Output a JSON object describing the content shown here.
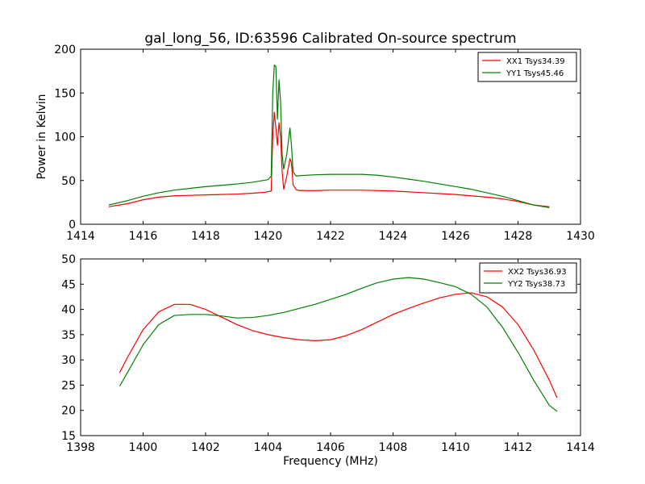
{
  "chart_data": [
    {
      "type": "line",
      "title": "gal_long_56, ID:63596 Calibrated On-source spectrum",
      "xlabel": "",
      "ylabel": "Power in Kelvin",
      "xlim": [
        1414,
        1430
      ],
      "ylim": [
        0,
        200
      ],
      "xticks": [
        1414,
        1416,
        1418,
        1420,
        1422,
        1424,
        1426,
        1428,
        1430
      ],
      "yticks": [
        0,
        50,
        100,
        150,
        200
      ],
      "grid": false,
      "legend_position": "top-right",
      "series": [
        {
          "name": "XX1 Tsys34.39",
          "color": "#ff0000",
          "points": [
            [
              1414.9,
              20
            ],
            [
              1415.5,
              23.5
            ],
            [
              1416,
              28
            ],
            [
              1416.5,
              31
            ],
            [
              1417,
              32.5
            ],
            [
              1417.5,
              33
            ],
            [
              1418,
              33.5
            ],
            [
              1418.5,
              34
            ],
            [
              1419,
              34.5
            ],
            [
              1419.5,
              35.5
            ],
            [
              1419.9,
              36.5
            ],
            [
              1420.1,
              38
            ],
            [
              1420.15,
              100
            ],
            [
              1420.2,
              128
            ],
            [
              1420.25,
              110
            ],
            [
              1420.3,
              90
            ],
            [
              1420.35,
              116
            ],
            [
              1420.4,
              100
            ],
            [
              1420.45,
              60
            ],
            [
              1420.5,
              40
            ],
            [
              1420.6,
              55
            ],
            [
              1420.7,
              75
            ],
            [
              1420.75,
              70
            ],
            [
              1420.8,
              45
            ],
            [
              1420.9,
              39.5
            ],
            [
              1421,
              38.5
            ],
            [
              1421.5,
              38.5
            ],
            [
              1422,
              39
            ],
            [
              1422.5,
              39
            ],
            [
              1423,
              39
            ],
            [
              1423.5,
              38.5
            ],
            [
              1424,
              38
            ],
            [
              1424.5,
              37
            ],
            [
              1425,
              36
            ],
            [
              1425.5,
              35
            ],
            [
              1426,
              34
            ],
            [
              1426.5,
              32.5
            ],
            [
              1427,
              31
            ],
            [
              1427.5,
              29
            ],
            [
              1428,
              26
            ],
            [
              1428.5,
              22
            ],
            [
              1429,
              20
            ]
          ]
        },
        {
          "name": "YY1 Tsys45.46",
          "color": "#008000",
          "points": [
            [
              1414.9,
              22
            ],
            [
              1415.5,
              27
            ],
            [
              1416,
              32
            ],
            [
              1416.5,
              36
            ],
            [
              1417,
              39
            ],
            [
              1417.5,
              41
            ],
            [
              1418,
              43
            ],
            [
              1418.5,
              44.5
            ],
            [
              1419,
              46
            ],
            [
              1419.5,
              48
            ],
            [
              1420,
              51
            ],
            [
              1420.1,
              55
            ],
            [
              1420.15,
              150
            ],
            [
              1420.2,
              182
            ],
            [
              1420.25,
              180
            ],
            [
              1420.3,
              120
            ],
            [
              1420.35,
              165
            ],
            [
              1420.4,
              140
            ],
            [
              1420.45,
              80
            ],
            [
              1420.5,
              63
            ],
            [
              1420.6,
              80
            ],
            [
              1420.7,
              110
            ],
            [
              1420.75,
              90
            ],
            [
              1420.8,
              60
            ],
            [
              1420.9,
              55
            ],
            [
              1421,
              55.5
            ],
            [
              1421.5,
              56.5
            ],
            [
              1422,
              57
            ],
            [
              1422.5,
              57
            ],
            [
              1423,
              57
            ],
            [
              1423.5,
              56
            ],
            [
              1424,
              54
            ],
            [
              1424.5,
              51.5
            ],
            [
              1425,
              49
            ],
            [
              1425.5,
              46
            ],
            [
              1426,
              43
            ],
            [
              1426.5,
              40
            ],
            [
              1427,
              36
            ],
            [
              1427.5,
              32
            ],
            [
              1428,
              27
            ],
            [
              1428.5,
              22
            ],
            [
              1429,
              19
            ]
          ]
        }
      ]
    },
    {
      "type": "line",
      "title": "",
      "xlabel": "Frequency (MHz)",
      "ylabel": "",
      "xlim": [
        1398,
        1414
      ],
      "ylim": [
        15,
        50
      ],
      "xticks": [
        1398,
        1400,
        1402,
        1404,
        1406,
        1408,
        1410,
        1412,
        1414
      ],
      "yticks": [
        15,
        20,
        25,
        30,
        35,
        40,
        45,
        50
      ],
      "grid": false,
      "legend_position": "top-right",
      "series": [
        {
          "name": "XX2 Tsys36.93",
          "color": "#ff0000",
          "points": [
            [
              1399.25,
              27.5
            ],
            [
              1399.5,
              30.5
            ],
            [
              1400,
              36
            ],
            [
              1400.5,
              39.5
            ],
            [
              1401,
              41
            ],
            [
              1401.5,
              41
            ],
            [
              1402,
              40
            ],
            [
              1402.5,
              38.5
            ],
            [
              1403,
              37
            ],
            [
              1403.5,
              35.8
            ],
            [
              1404,
              35
            ],
            [
              1404.5,
              34.4
            ],
            [
              1405,
              34
            ],
            [
              1405.5,
              33.8
            ],
            [
              1406,
              34
            ],
            [
              1406.5,
              34.8
            ],
            [
              1407,
              36
            ],
            [
              1407.5,
              37.5
            ],
            [
              1408,
              39
            ],
            [
              1408.5,
              40.2
            ],
            [
              1409,
              41.3
            ],
            [
              1409.5,
              42.3
            ],
            [
              1410,
              43
            ],
            [
              1410.5,
              43.3
            ],
            [
              1411,
              42.5
            ],
            [
              1411.5,
              40.5
            ],
            [
              1412,
              37
            ],
            [
              1412.5,
              32
            ],
            [
              1413,
              26
            ],
            [
              1413.25,
              22.5
            ]
          ]
        },
        {
          "name": "YY2 Tsys38.73",
          "color": "#008000",
          "points": [
            [
              1399.25,
              24.8
            ],
            [
              1399.5,
              27.5
            ],
            [
              1400,
              33
            ],
            [
              1400.5,
              37
            ],
            [
              1401,
              38.8
            ],
            [
              1401.5,
              39
            ],
            [
              1402,
              39
            ],
            [
              1402.5,
              38.7
            ],
            [
              1403,
              38.3
            ],
            [
              1403.5,
              38.4
            ],
            [
              1404,
              38.8
            ],
            [
              1404.5,
              39.4
            ],
            [
              1405,
              40.2
            ],
            [
              1405.5,
              41
            ],
            [
              1406,
              42
            ],
            [
              1406.5,
              43
            ],
            [
              1407,
              44.2
            ],
            [
              1407.5,
              45.3
            ],
            [
              1408,
              46
            ],
            [
              1408.5,
              46.3
            ],
            [
              1409,
              46
            ],
            [
              1409.5,
              45.3
            ],
            [
              1410,
              44.5
            ],
            [
              1410.5,
              43
            ],
            [
              1411,
              40.5
            ],
            [
              1411.5,
              36.5
            ],
            [
              1412,
              31.5
            ],
            [
              1412.5,
              26
            ],
            [
              1413,
              21
            ],
            [
              1413.25,
              19.8
            ]
          ]
        }
      ]
    }
  ]
}
